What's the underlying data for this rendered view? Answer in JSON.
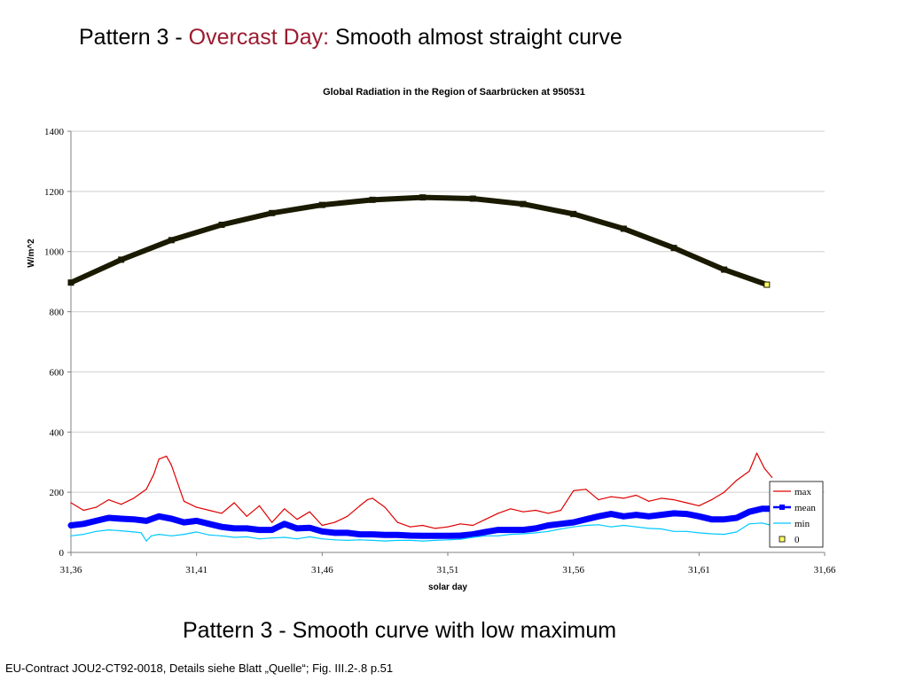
{
  "slide": {
    "title_prefix": "Pattern 3 - ",
    "title_accent": "Overcast Day:",
    "title_suffix": " Smooth almost straight curve",
    "subtitle": "Pattern 3 - Smooth curve with low maximum",
    "footer": "EU-Contract JOU2-CT92-0018, Details siehe Blatt „Quelle“; Fig. III.2-.8 p.51",
    "accent_color": "#9b1b30"
  },
  "chart_data": {
    "type": "line",
    "title": "Global Radiation in the Region of Saarbrücken at 950531",
    "xlabel": "solar day",
    "ylabel": "W/m^2",
    "xlim": [
      31.36,
      31.66
    ],
    "ylim": [
      0,
      1400
    ],
    "x_ticks": [
      "31,36",
      "31,41",
      "31,46",
      "31,51",
      "31,56",
      "31,61",
      "31,66"
    ],
    "y_ticks": [
      "0",
      "200",
      "400",
      "600",
      "800",
      "1000",
      "1200",
      "1400"
    ],
    "grid": true,
    "legend_position": "bottom-right",
    "series": [
      {
        "name": "max",
        "color": "#e00000",
        "x": [
          31.36,
          31.365,
          31.37,
          31.375,
          31.38,
          31.385,
          31.39,
          31.393,
          31.395,
          31.398,
          31.4,
          31.405,
          31.41,
          31.415,
          31.42,
          31.425,
          31.43,
          31.435,
          31.44,
          31.445,
          31.45,
          31.455,
          31.46,
          31.465,
          31.47,
          31.475,
          31.478,
          31.48,
          31.485,
          31.49,
          31.495,
          31.5,
          31.505,
          31.51,
          31.515,
          31.52,
          31.525,
          31.53,
          31.535,
          31.54,
          31.545,
          31.55,
          31.555,
          31.56,
          31.565,
          31.57,
          31.575,
          31.58,
          31.585,
          31.59,
          31.595,
          31.6,
          31.605,
          31.61,
          31.615,
          31.62,
          31.625,
          31.63,
          31.633,
          31.636,
          31.639
        ],
        "values": [
          165,
          140,
          150,
          175,
          160,
          180,
          210,
          260,
          310,
          320,
          290,
          170,
          150,
          140,
          130,
          165,
          120,
          155,
          100,
          145,
          110,
          135,
          90,
          100,
          120,
          155,
          175,
          180,
          150,
          100,
          85,
          90,
          80,
          85,
          95,
          90,
          110,
          130,
          145,
          135,
          140,
          130,
          140,
          205,
          210,
          175,
          185,
          180,
          190,
          170,
          180,
          175,
          165,
          155,
          175,
          200,
          240,
          270,
          330,
          280,
          250
        ]
      },
      {
        "name": "mean",
        "color": "#0000ff",
        "x": [
          31.36,
          31.365,
          31.37,
          31.375,
          31.38,
          31.385,
          31.39,
          31.395,
          31.4,
          31.405,
          31.41,
          31.415,
          31.42,
          31.425,
          31.43,
          31.435,
          31.44,
          31.445,
          31.45,
          31.455,
          31.46,
          31.465,
          31.47,
          31.475,
          31.48,
          31.485,
          31.49,
          31.495,
          31.5,
          31.505,
          31.51,
          31.515,
          31.52,
          31.525,
          31.53,
          31.535,
          31.54,
          31.545,
          31.55,
          31.555,
          31.56,
          31.565,
          31.57,
          31.575,
          31.58,
          31.585,
          31.59,
          31.595,
          31.6,
          31.605,
          31.61,
          31.615,
          31.62,
          31.625,
          31.63,
          31.635,
          31.639
        ],
        "values": [
          90,
          95,
          105,
          115,
          112,
          110,
          105,
          120,
          112,
          100,
          105,
          95,
          85,
          80,
          80,
          75,
          75,
          95,
          80,
          82,
          70,
          65,
          65,
          60,
          60,
          58,
          58,
          56,
          55,
          55,
          55,
          56,
          60,
          68,
          75,
          75,
          75,
          80,
          90,
          95,
          100,
          110,
          120,
          128,
          120,
          125,
          120,
          125,
          130,
          128,
          120,
          110,
          110,
          115,
          135,
          145,
          145
        ]
      },
      {
        "name": "min",
        "color": "#00c8ff",
        "x": [
          31.36,
          31.365,
          31.37,
          31.375,
          31.38,
          31.385,
          31.388,
          31.39,
          31.392,
          31.395,
          31.4,
          31.405,
          31.41,
          31.415,
          31.42,
          31.425,
          31.43,
          31.435,
          31.44,
          31.445,
          31.45,
          31.455,
          31.46,
          31.465,
          31.47,
          31.475,
          31.48,
          31.485,
          31.49,
          31.495,
          31.5,
          31.505,
          31.51,
          31.515,
          31.52,
          31.525,
          31.53,
          31.535,
          31.54,
          31.545,
          31.55,
          31.555,
          31.56,
          31.565,
          31.57,
          31.575,
          31.58,
          31.585,
          31.59,
          31.595,
          31.6,
          31.605,
          31.61,
          31.615,
          31.62,
          31.625,
          31.63,
          31.635,
          31.639
        ],
        "values": [
          55,
          60,
          70,
          75,
          72,
          68,
          65,
          38,
          55,
          60,
          55,
          60,
          68,
          58,
          55,
          50,
          52,
          45,
          48,
          50,
          45,
          52,
          45,
          42,
          40,
          42,
          40,
          38,
          40,
          40,
          38,
          40,
          42,
          44,
          50,
          55,
          55,
          60,
          62,
          65,
          70,
          78,
          85,
          90,
          92,
          85,
          90,
          85,
          80,
          78,
          70,
          70,
          65,
          62,
          60,
          68,
          95,
          98,
          90
        ]
      },
      {
        "name": "0",
        "color": "#1a1a00",
        "marker_fill": "#ffff66",
        "x": [
          31.36,
          31.38,
          31.4,
          31.42,
          31.44,
          31.46,
          31.48,
          31.5,
          31.52,
          31.54,
          31.56,
          31.58,
          31.6,
          31.62,
          31.637
        ],
        "values": [
          897,
          973,
          1038,
          1089,
          1128,
          1155,
          1172,
          1180,
          1176,
          1158,
          1125,
          1076,
          1012,
          940,
          890
        ]
      }
    ]
  }
}
